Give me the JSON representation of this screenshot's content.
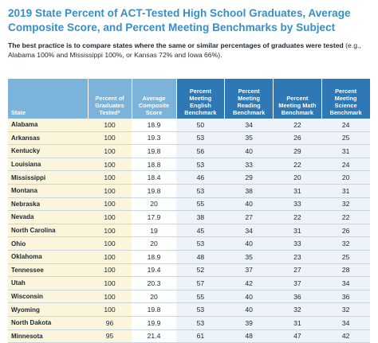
{
  "title": "2019 State Percent of ACT-Tested High School Graduates, Average Composite Score, and Percent Meeting Benchmarks by Subject",
  "note": {
    "bold": "The best practice is to compare states where the same or similar percentages of graduates were tested",
    "regular": " (e.g., Alabama 100% and Mississippi 100%, or Kansas 72% and Iowa 66%)."
  },
  "table": {
    "headers": {
      "state": "State",
      "pct": "Percent of Graduates Tested*",
      "avg": "Average Composite Score",
      "english": "Percent Meeting English Benchmark",
      "reading": "Percent Meeting Reading Benchmark",
      "math": "Percent Meeting Math Benchmark",
      "science": "Percent Meeting Science Benchmark"
    },
    "rows": [
      {
        "state": "Alabama",
        "pct": "100",
        "avg": "18.9",
        "english": "50",
        "reading": "34",
        "math": "22",
        "science": "24"
      },
      {
        "state": "Arkansas",
        "pct": "100",
        "avg": "19.3",
        "english": "53",
        "reading": "35",
        "math": "26",
        "science": "25"
      },
      {
        "state": "Kentucky",
        "pct": "100",
        "avg": "19.8",
        "english": "56",
        "reading": "40",
        "math": "29",
        "science": "31"
      },
      {
        "state": "Louisiana",
        "pct": "100",
        "avg": "18.8",
        "english": "53",
        "reading": "33",
        "math": "22",
        "science": "24"
      },
      {
        "state": "Mississippi",
        "pct": "100",
        "avg": "18.4",
        "english": "46",
        "reading": "29",
        "math": "20",
        "science": "20"
      },
      {
        "state": "Montana",
        "pct": "100",
        "avg": "19.8",
        "english": "53",
        "reading": "38",
        "math": "31",
        "science": "31"
      },
      {
        "state": "Nebraska",
        "pct": "100",
        "avg": "20",
        "english": "55",
        "reading": "40",
        "math": "33",
        "science": "32"
      },
      {
        "state": "Nevada",
        "pct": "100",
        "avg": "17.9",
        "english": "38",
        "reading": "27",
        "math": "22",
        "science": "22"
      },
      {
        "state": "North Carolina",
        "pct": "100",
        "avg": "19",
        "english": "45",
        "reading": "34",
        "math": "31",
        "science": "26"
      },
      {
        "state": "Ohio",
        "pct": "100",
        "avg": "20",
        "english": "53",
        "reading": "40",
        "math": "33",
        "science": "32"
      },
      {
        "state": "Oklahoma",
        "pct": "100",
        "avg": "18.9",
        "english": "48",
        "reading": "35",
        "math": "23",
        "science": "25"
      },
      {
        "state": "Tennessee",
        "pct": "100",
        "avg": "19.4",
        "english": "52",
        "reading": "37",
        "math": "27",
        "science": "28"
      },
      {
        "state": "Utah",
        "pct": "100",
        "avg": "20.3",
        "english": "57",
        "reading": "42",
        "math": "37",
        "science": "34"
      },
      {
        "state": "Wisconsin",
        "pct": "100",
        "avg": "20",
        "english": "55",
        "reading": "40",
        "math": "36",
        "science": "36"
      },
      {
        "state": "Wyoming",
        "pct": "100",
        "avg": "19.8",
        "english": "53",
        "reading": "40",
        "math": "32",
        "science": "32"
      },
      {
        "state": "North Dakota",
        "pct": "96",
        "avg": "19.9",
        "english": "53",
        "reading": "39",
        "math": "31",
        "science": "34"
      },
      {
        "state": "Minnesota",
        "pct": "95",
        "avg": "21.4",
        "english": "61",
        "reading": "48",
        "math": "47",
        "science": "42"
      }
    ]
  }
}
